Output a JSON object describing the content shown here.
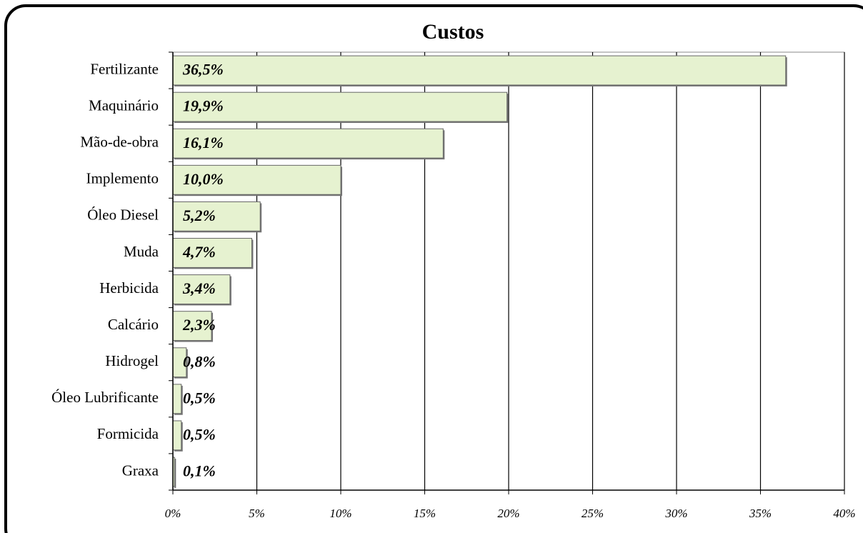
{
  "chart_data": {
    "type": "bar",
    "orientation": "horizontal",
    "title": "Custos",
    "categories": [
      "Fertilizante",
      "Maquinário",
      "Mão-de-obra",
      "Implemento",
      "Óleo Diesel",
      "Muda",
      "Herbicida",
      "Calcário",
      "Hidrogel",
      "Óleo Lubrificante",
      "Formicida",
      "Graxa"
    ],
    "values": [
      36.5,
      19.9,
      16.1,
      10.0,
      5.2,
      4.7,
      3.4,
      2.3,
      0.8,
      0.5,
      0.5,
      0.1
    ],
    "value_labels": [
      "36,5%",
      "19,9%",
      "16,1%",
      "10,0%",
      "5,2%",
      "4,7%",
      "3,4%",
      "2,3%",
      "0,8%",
      "0,5%",
      "0,5%",
      "0,1%"
    ],
    "color": "#e6f2d0",
    "xlim": [
      0,
      40
    ],
    "xticks": [
      {
        "value": 0,
        "label": "0%"
      },
      {
        "value": 5,
        "label": "5%"
      },
      {
        "value": 10,
        "label": "10%"
      },
      {
        "value": 15,
        "label": "15%"
      },
      {
        "value": 20,
        "label": "20%"
      },
      {
        "value": 25,
        "label": "25%"
      },
      {
        "value": 30,
        "label": "30%"
      },
      {
        "value": 35,
        "label": "35%"
      },
      {
        "value": 40,
        "label": "40%"
      }
    ],
    "grid": true
  }
}
